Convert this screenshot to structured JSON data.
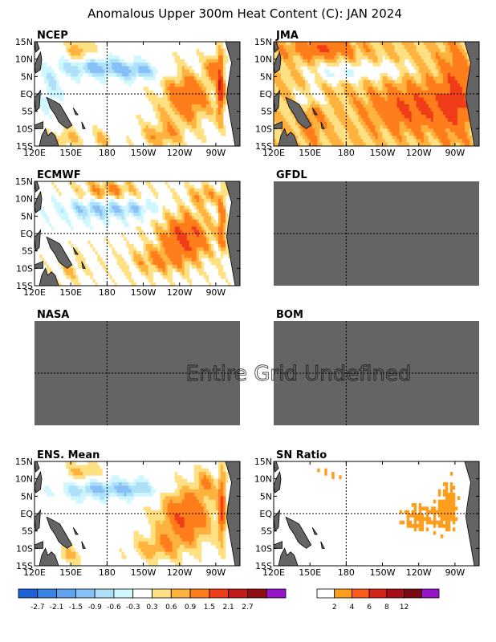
{
  "chart_data": {
    "type": "heatmap",
    "title": "Anomalous Upper 300m Heat Content (C): JAN 2024",
    "x_ticks": [
      "120E",
      "150E",
      "180",
      "150W",
      "120W",
      "90W"
    ],
    "y_ticks": [
      "15N",
      "10N",
      "5N",
      "EQ",
      "5S",
      "10S",
      "15S"
    ],
    "undefined_text": "Entire Grid Undefined",
    "colors": {
      "land": "#646464",
      "undefined": "#646464",
      "zero": "#ffffff"
    },
    "anomaly_scale": {
      "labels": [
        "-2.7",
        "-2.1",
        "-1.5",
        "-0.9",
        "-0.6",
        "-0.3",
        "0.3",
        "0.6",
        "0.9",
        "1.5",
        "2.1",
        "2.7"
      ],
      "colors": [
        "#1d62d6",
        "#3a84e8",
        "#5ea2f0",
        "#86c0f6",
        "#aee0fa",
        "#cff7ff",
        "#ffffff",
        "#ffe184",
        "#ffb23e",
        "#ff7d1b",
        "#f03c18",
        "#c21a18",
        "#8f0c12",
        "#9a14cc"
      ]
    },
    "snr_scale": {
      "labels": [
        "2",
        "4",
        "6",
        "8",
        "12"
      ],
      "colors": [
        "#ffffff",
        "#ff9e1c",
        "#ff5a1c",
        "#d42418",
        "#a80c18",
        "#7a0a14",
        "#9a14cc"
      ]
    },
    "panels": [
      {
        "name": "NCEP",
        "defined": true,
        "model": "ncep"
      },
      {
        "name": "JMA",
        "defined": true,
        "model": "jma"
      },
      {
        "name": "ECMWF",
        "defined": true,
        "model": "ecmwf"
      },
      {
        "name": "GFDL",
        "defined": false
      },
      {
        "name": "NASA",
        "defined": false
      },
      {
        "name": "BOM",
        "defined": false
      },
      {
        "name": "ENS. Mean",
        "defined": true,
        "model": "ens"
      },
      {
        "name": "SN Ratio",
        "defined": true,
        "model": "snr"
      }
    ]
  }
}
